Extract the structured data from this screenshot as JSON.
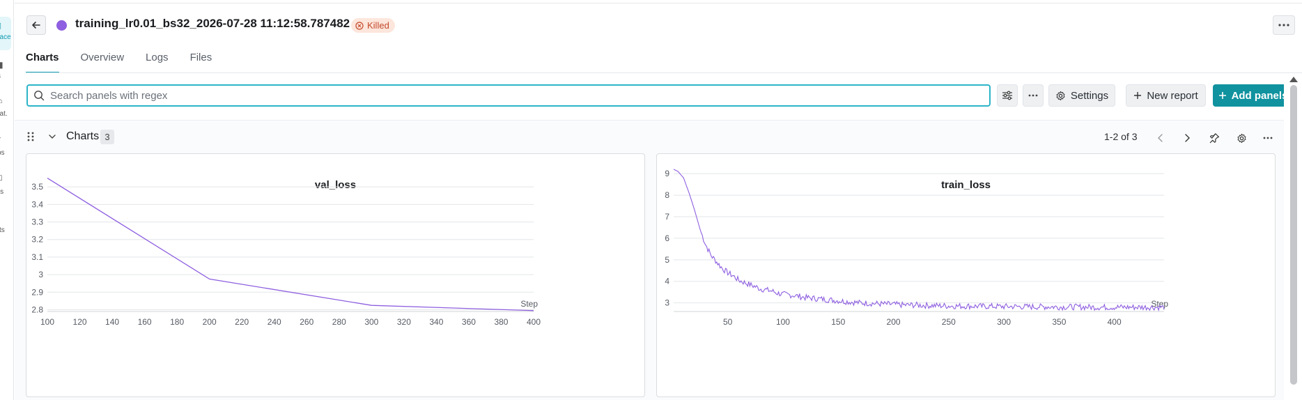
{
  "rail": {
    "items": [
      "pace",
      "s",
      "hat.",
      "ps",
      "rts",
      "cts"
    ]
  },
  "header": {
    "run_title": "training_lr0.01_bs32_2026-07-28 11:12:58.787482",
    "status": "Killed",
    "run_color": "#8e5fe0"
  },
  "tabs": [
    {
      "label": "Charts",
      "active": true
    },
    {
      "label": "Overview",
      "active": false
    },
    {
      "label": "Logs",
      "active": false
    },
    {
      "label": "Files",
      "active": false
    }
  ],
  "toolbar": {
    "search_placeholder": "Search panels with regex",
    "search_value": "",
    "settings_label": "Settings",
    "new_report_label": "New report",
    "add_panels_label": "Add panels"
  },
  "section": {
    "title": "Charts",
    "count": "3",
    "pager": "1-2 of 3"
  },
  "chart_data": [
    {
      "type": "line",
      "title": "val_loss",
      "xlabel": "Step",
      "ylabel": "",
      "xlim": [
        100,
        400
      ],
      "ylim": [
        2.79,
        3.6
      ],
      "x_ticks": [
        "100",
        "120",
        "140",
        "160",
        "180",
        "200",
        "220",
        "240",
        "260",
        "280",
        "300",
        "320",
        "340",
        "360",
        "380",
        "400"
      ],
      "y_ticks": [
        "2.8",
        "2.9",
        "3",
        "3.1",
        "3.2",
        "3.3",
        "3.4",
        "3.5"
      ],
      "series": [
        {
          "color": "#8e5fe0",
          "x": [
            100,
            200,
            300,
            400
          ],
          "y": [
            3.55,
            2.975,
            2.825,
            2.795
          ]
        }
      ]
    },
    {
      "type": "line",
      "title": "train_loss",
      "xlabel": "Step",
      "ylabel": "",
      "xlim": [
        1,
        445
      ],
      "ylim": [
        2.6,
        9.2
      ],
      "x_ticks": [
        "50",
        "100",
        "150",
        "200",
        "250",
        "300",
        "350",
        "400"
      ],
      "y_ticks": [
        "3",
        "4",
        "5",
        "6",
        "7",
        "8",
        "9"
      ],
      "series": [
        {
          "color": "#8e5fe0",
          "x": [
            1,
            5,
            10,
            15,
            20,
            25,
            30,
            35,
            40,
            45,
            50,
            55,
            60,
            65,
            70,
            75,
            80,
            85,
            90,
            95,
            100,
            110,
            120,
            130,
            140,
            150,
            160,
            170,
            180,
            190,
            200,
            210,
            220,
            230,
            240,
            250,
            260,
            270,
            280,
            290,
            300,
            310,
            320,
            330,
            340,
            350,
            360,
            370,
            380,
            390,
            400,
            410,
            420,
            430,
            440,
            445
          ],
          "y": [
            9.2,
            9.1,
            8.8,
            8.1,
            7.3,
            6.4,
            5.7,
            5.2,
            4.9,
            4.6,
            4.4,
            4.25,
            4.05,
            3.95,
            3.85,
            3.75,
            3.65,
            3.6,
            3.55,
            3.45,
            3.4,
            3.35,
            3.25,
            3.2,
            3.15,
            3.1,
            3.05,
            3.0,
            2.98,
            2.95,
            2.93,
            2.9,
            2.9,
            2.88,
            2.87,
            2.86,
            2.85,
            2.85,
            2.84,
            2.84,
            2.83,
            2.83,
            2.82,
            2.82,
            2.82,
            2.81,
            2.81,
            2.81,
            2.8,
            2.8,
            2.8,
            2.8,
            2.8,
            2.8,
            2.8,
            2.8
          ]
        }
      ]
    }
  ]
}
